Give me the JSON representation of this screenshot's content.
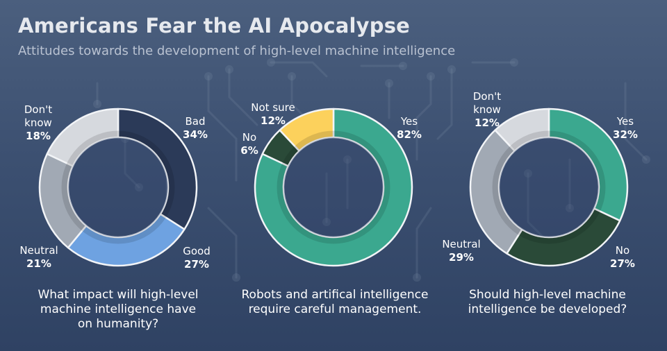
{
  "header": {
    "title": "Americans Fear the AI Apocalypse",
    "subtitle": "Attitudes towards the development of high-level machine intelligence"
  },
  "colors": {
    "bad": "#2b3a58",
    "good": "#6ea2e1",
    "neutral": "#a1a9b4",
    "dont_know": "#d6d9de",
    "yes": "#3ba88f",
    "no": "#2a4a38",
    "not_sure": "#fcd15c"
  },
  "chart_data": [
    {
      "type": "pie",
      "donut": true,
      "caption": "What impact will high-level machine intelligence have on humanity?",
      "caption_lines": [
        "What impact will high-level",
        "machine intelligence have",
        "on humanity?"
      ],
      "slices": [
        {
          "label": "Bad",
          "value": 34,
          "color": "#2b3a58",
          "label_lines": [
            "Bad",
            "34%"
          ]
        },
        {
          "label": "Good",
          "value": 27,
          "color": "#6ea2e1",
          "label_lines": [
            "Good",
            "27%"
          ]
        },
        {
          "label": "Neutral",
          "value": 21,
          "color": "#a1a9b4",
          "label_lines": [
            "Neutral",
            "21%"
          ]
        },
        {
          "label": "Don't know",
          "value": 18,
          "color": "#d6d9de",
          "label_lines": [
            "Don't",
            "know",
            "18%"
          ]
        }
      ]
    },
    {
      "type": "pie",
      "donut": true,
      "caption": "Robots and artifical intelligence require careful management.",
      "caption_lines": [
        "Robots and artifical intelligence",
        "require careful management."
      ],
      "slices": [
        {
          "label": "Yes",
          "value": 82,
          "color": "#3ba88f",
          "label_lines": [
            "Yes",
            "82%"
          ]
        },
        {
          "label": "No",
          "value": 6,
          "color": "#2a4a38",
          "label_lines": [
            "No",
            "6%"
          ]
        },
        {
          "label": "Not sure",
          "value": 12,
          "color": "#fcd15c",
          "label_lines": [
            "Not sure",
            "12%"
          ]
        }
      ]
    },
    {
      "type": "pie",
      "donut": true,
      "caption": "Should high-level machine intelligence be developed?",
      "caption_lines": [
        "Should high-level machine",
        "intelligence be developed?"
      ],
      "slices": [
        {
          "label": "Yes",
          "value": 32,
          "color": "#3ba88f",
          "label_lines": [
            "Yes",
            "32%"
          ]
        },
        {
          "label": "No",
          "value": 27,
          "color": "#2a4a38",
          "label_lines": [
            "No",
            "27%"
          ]
        },
        {
          "label": "Neutral",
          "value": 29,
          "color": "#a1a9b4",
          "label_lines": [
            "Neutral",
            "29%"
          ]
        },
        {
          "label": "Don't know",
          "value": 12,
          "color": "#d6d9de",
          "label_lines": [
            "Don't",
            "know",
            "12%"
          ]
        }
      ]
    }
  ]
}
